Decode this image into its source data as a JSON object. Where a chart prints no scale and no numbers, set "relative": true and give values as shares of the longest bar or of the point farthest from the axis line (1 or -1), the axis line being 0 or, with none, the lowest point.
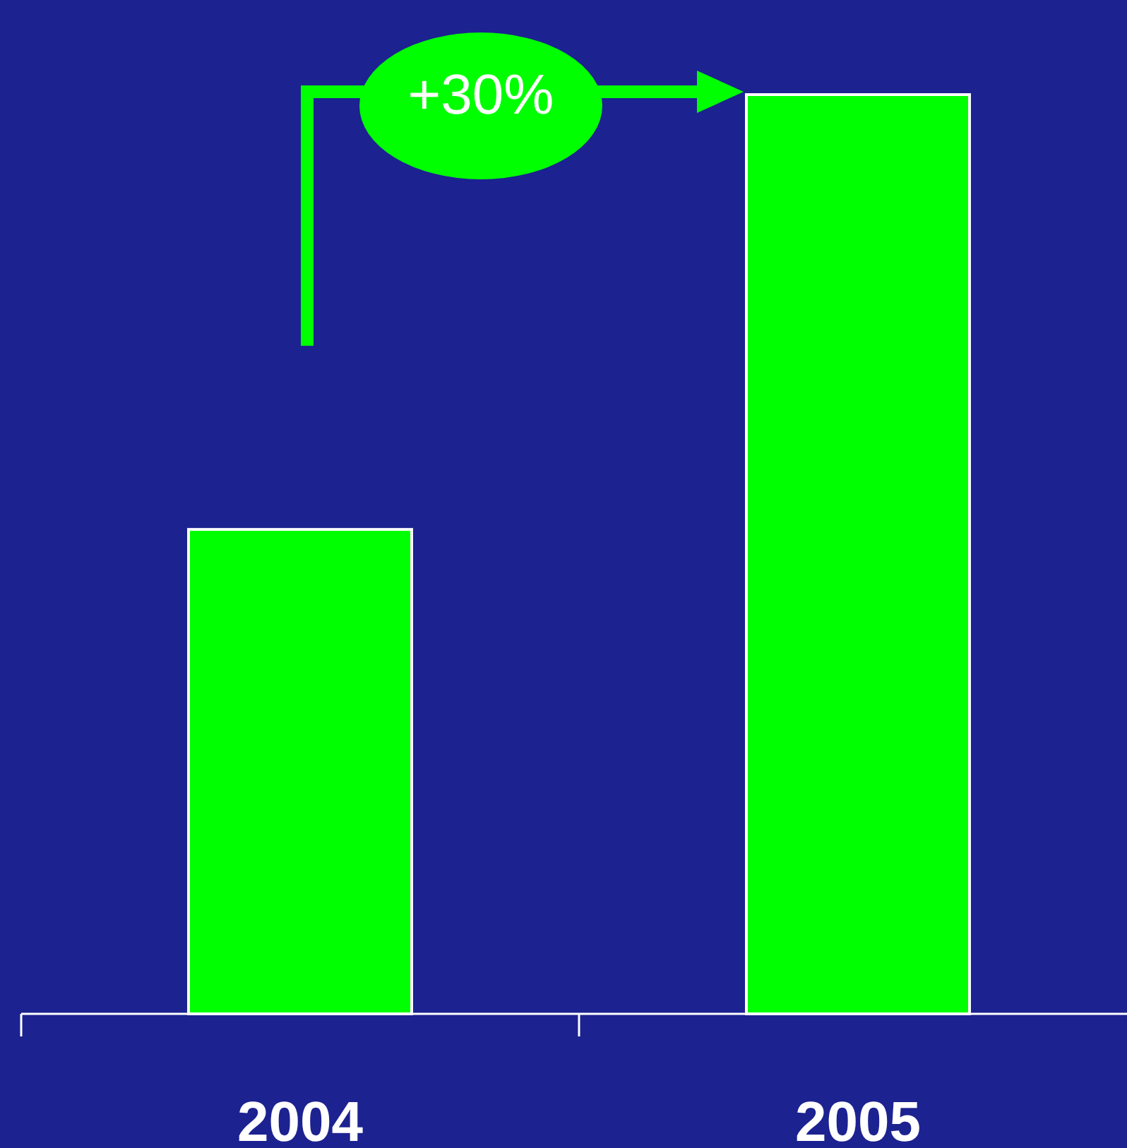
{
  "chart_data": {
    "type": "bar",
    "categories": [
      "2004",
      "2005"
    ],
    "values": [
      0.527,
      1
    ],
    "relative": true,
    "color": "#00ff00",
    "annotations": [
      "+30%"
    ]
  }
}
